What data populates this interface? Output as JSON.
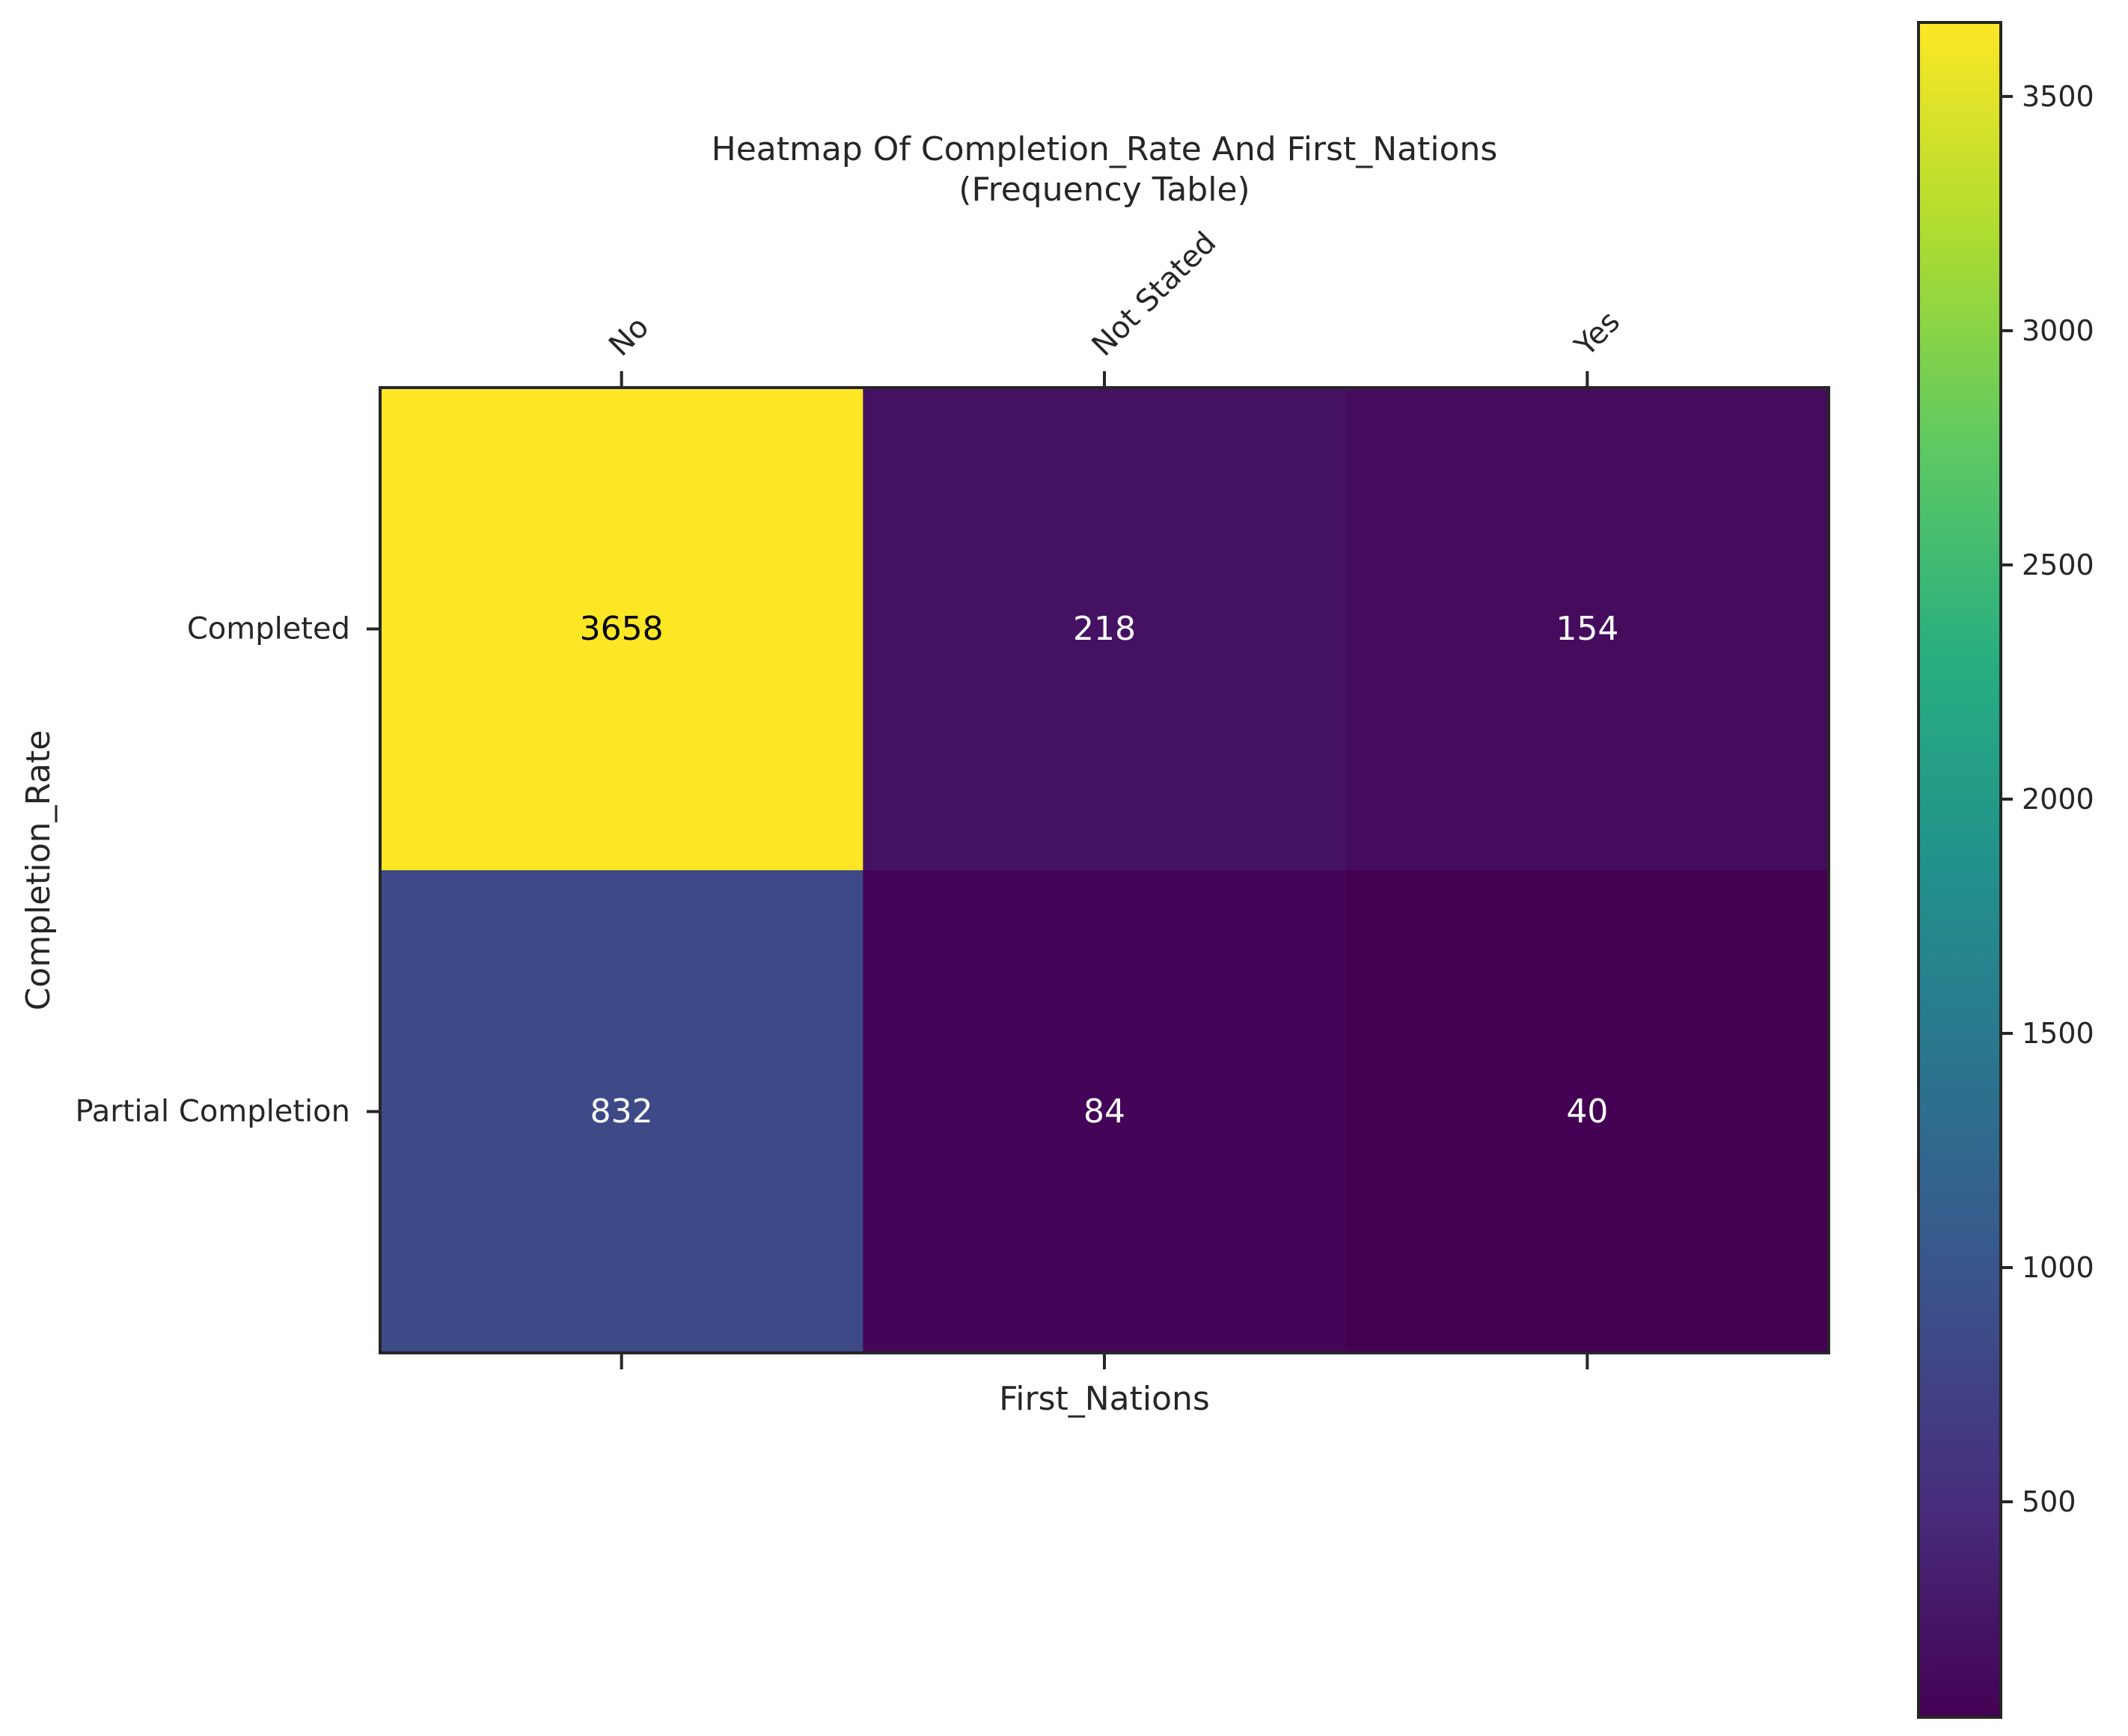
{
  "chart_data": {
    "type": "heatmap",
    "title": "Heatmap Of Completion_Rate And First_Nations",
    "subtitle": "(Frequency Table)",
    "xlabel": "First_Nations",
    "ylabel": "Completion_Rate",
    "x_categories": [
      "No",
      "Not Stated",
      "Yes"
    ],
    "y_categories": [
      "Completed",
      "Partial Completion"
    ],
    "values": [
      [
        3658,
        218,
        154
      ],
      [
        832,
        84,
        40
      ]
    ],
    "colormap": "viridis",
    "colorbar": {
      "min": 40,
      "max": 3658,
      "ticks": [
        500,
        1000,
        1500,
        2000,
        2500,
        3000,
        3500
      ]
    },
    "grid": false,
    "annotation_colors": {
      "on_light": "#000000",
      "on_dark": "#ffffff"
    }
  }
}
